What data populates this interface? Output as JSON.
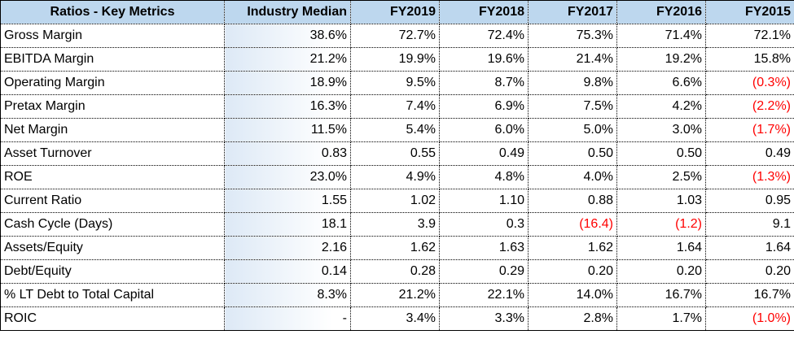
{
  "table": {
    "headers": [
      "Ratios - Key Metrics",
      "Industry Median",
      "FY2019",
      "FY2018",
      "FY2017",
      "FY2016",
      "FY2015"
    ],
    "rows": [
      {
        "metric": "Gross Margin",
        "median": "38.6%",
        "values": [
          "72.7%",
          "72.4%",
          "75.3%",
          "71.4%",
          "72.1%"
        ]
      },
      {
        "metric": "EBITDA Margin",
        "median": "21.2%",
        "values": [
          "19.9%",
          "19.6%",
          "21.4%",
          "19.2%",
          "15.8%"
        ]
      },
      {
        "metric": "Operating Margin",
        "median": "18.9%",
        "values": [
          "9.5%",
          "8.7%",
          "9.8%",
          "6.6%",
          "(0.3%)"
        ]
      },
      {
        "metric": "Pretax Margin",
        "median": "16.3%",
        "values": [
          "7.4%",
          "6.9%",
          "7.5%",
          "4.2%",
          "(2.2%)"
        ]
      },
      {
        "metric": "Net Margin",
        "median": "11.5%",
        "values": [
          "5.4%",
          "6.0%",
          "5.0%",
          "3.0%",
          "(1.7%)"
        ]
      },
      {
        "metric": "Asset Turnover",
        "median": "0.83",
        "values": [
          "0.55",
          "0.49",
          "0.50",
          "0.50",
          "0.49"
        ]
      },
      {
        "metric": "ROE",
        "median": "23.0%",
        "values": [
          "4.9%",
          "4.8%",
          "4.0%",
          "2.5%",
          "(1.3%)"
        ]
      },
      {
        "metric": "Current Ratio",
        "median": "1.55",
        "values": [
          "1.02",
          "1.10",
          "0.88",
          "1.03",
          "0.95"
        ]
      },
      {
        "metric": "Cash Cycle (Days)",
        "median": "18.1",
        "values": [
          "3.9",
          "0.3",
          "(16.4)",
          "(1.2)",
          "9.1"
        ]
      },
      {
        "metric": "Assets/Equity",
        "median": "2.16",
        "values": [
          "1.62",
          "1.63",
          "1.62",
          "1.64",
          "1.64"
        ]
      },
      {
        "metric": "Debt/Equity",
        "median": "0.14",
        "values": [
          "0.28",
          "0.29",
          "0.20",
          "0.20",
          "0.20"
        ]
      },
      {
        "metric": "% LT Debt to Total Capital",
        "median": "8.3%",
        "values": [
          "21.2%",
          "22.1%",
          "14.0%",
          "16.7%",
          "16.7%"
        ]
      },
      {
        "metric": "ROIC",
        "median": "-",
        "values": [
          "3.4%",
          "3.3%",
          "2.8%",
          "1.7%",
          "(1.0%)"
        ]
      }
    ]
  },
  "colors": {
    "header_background": "#bdd7ee",
    "median_tint": "#dde9f6",
    "negative_text": "#ff0000",
    "text": "#000000",
    "grid": "#000000"
  }
}
